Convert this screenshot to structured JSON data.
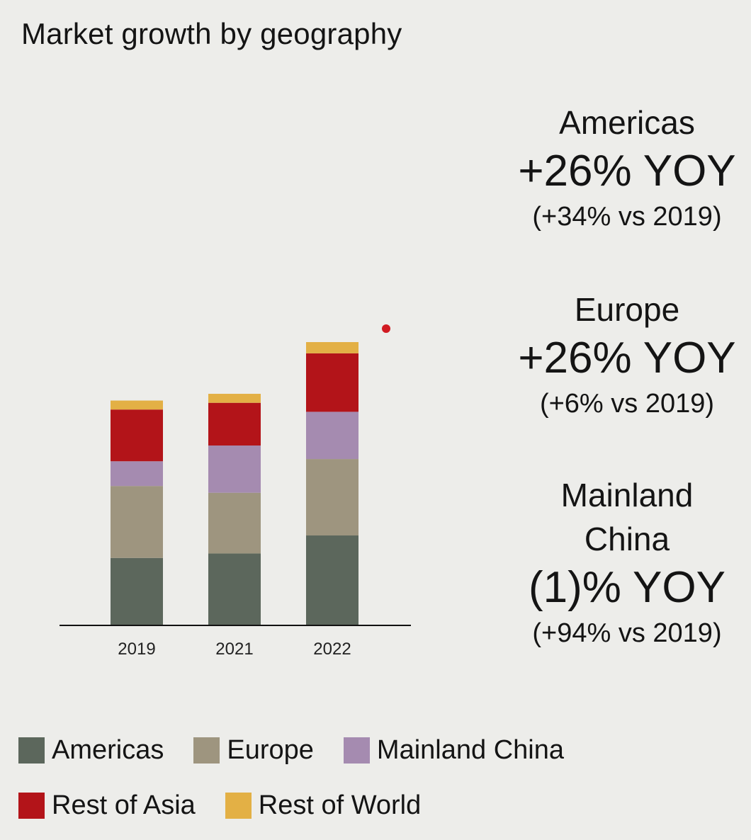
{
  "chart_data": {
    "type": "bar",
    "stacked": true,
    "title": "Market growth by geography",
    "categories": [
      "2019",
      "2021",
      "2022"
    ],
    "series": [
      {
        "name": "Americas",
        "color": "#5c675c",
        "values": [
          30,
          32,
          40
        ]
      },
      {
        "name": "Europe",
        "color": "#9e957f",
        "values": [
          32,
          27,
          34
        ]
      },
      {
        "name": "Mainland China",
        "color": "#a58bb0",
        "values": [
          11,
          21,
          21
        ]
      },
      {
        "name": "Rest of Asia",
        "color": "#b31419",
        "values": [
          23,
          19,
          26
        ]
      },
      {
        "name": "Rest of World",
        "color": "#e3b045",
        "values": [
          4,
          4,
          5
        ]
      }
    ],
    "xlabel": "",
    "ylabel": "",
    "ylim": [
      0,
      126
    ],
    "grid": false,
    "legend": "bottom"
  },
  "annotation": {
    "color": "#d11b22"
  },
  "stats": [
    {
      "region": "Americas",
      "yoy": "+26% YOY",
      "vs": "(+34% vs 2019)"
    },
    {
      "region": "Europe",
      "yoy": "+26% YOY",
      "vs": "(+6% vs 2019)"
    },
    {
      "region": "Mainland China",
      "yoy": "(1)% YOY",
      "vs": "(+94% vs 2019)"
    }
  ]
}
